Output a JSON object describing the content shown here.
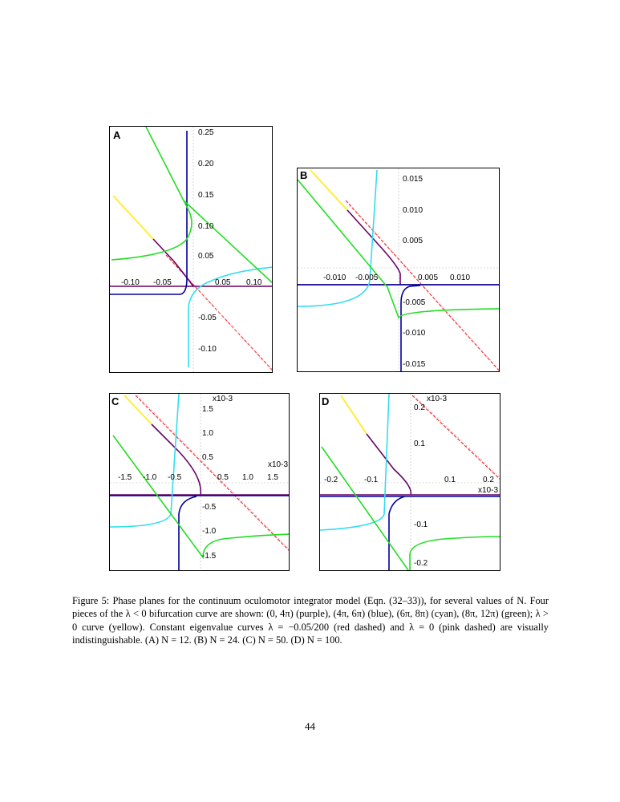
{
  "figure": {
    "panels": [
      {
        "id": "A",
        "x_ticks": [
          "-0.10",
          "-0.05",
          "0.05",
          "0.10"
        ],
        "y_ticks": [
          "0.25",
          "0.20",
          "0.15",
          "0.10",
          "0.05",
          "-0.05",
          "-0.10"
        ],
        "x_multiplier": "",
        "y_multiplier": ""
      },
      {
        "id": "B",
        "x_ticks": [
          "-0.010",
          "-0.005",
          "0.005",
          "0.010"
        ],
        "y_ticks": [
          "0.015",
          "0.010",
          "0.005",
          "-0.005",
          "-0.010",
          "-0.015"
        ],
        "x_multiplier": "",
        "y_multiplier": ""
      },
      {
        "id": "C",
        "x_ticks": [
          "-1.5",
          "-1.0",
          "-0.5",
          "0.5",
          "1.0",
          "1.5"
        ],
        "y_ticks": [
          "1.5",
          "1.0",
          "0.5",
          "-0.5",
          "-1.0",
          "-1.5"
        ],
        "x_multiplier": "x10-3",
        "y_multiplier": "x10-3"
      },
      {
        "id": "D",
        "x_ticks": [
          "-0.2",
          "-0.1",
          "0.1",
          "0.2"
        ],
        "y_ticks": [
          "0.2",
          "0.1",
          "-0.1",
          "-0.2"
        ],
        "x_multiplier": "x10-3",
        "y_multiplier": "x10-3"
      }
    ],
    "colors": {
      "purple": "#660066",
      "blue": "#000099",
      "cyan": "#33ddee",
      "green": "#22dd22",
      "yellow": "#ffee33",
      "red_dashed": "#ee3333",
      "pink_dashed": "#ff99aa"
    },
    "caption": "Figure 5: Phase planes for the continuum oculomotor integrator model (Eqn. (32–33)), for several values of N. Four pieces of the λ < 0 bifurcation curve are shown: (0, 4π) (purple), (4π, 6π) (blue), (6π, 8π) (cyan), (8π, 12π) (green); λ > 0 curve (yellow). Constant eigenvalue curves λ = −0.05/200 (red dashed) and λ = 0 (pink dashed) are visually indistinguishable. (A) N = 12. (B) N = 24. (C) N = 50. (D) N = 100."
  },
  "page_number": "44"
}
